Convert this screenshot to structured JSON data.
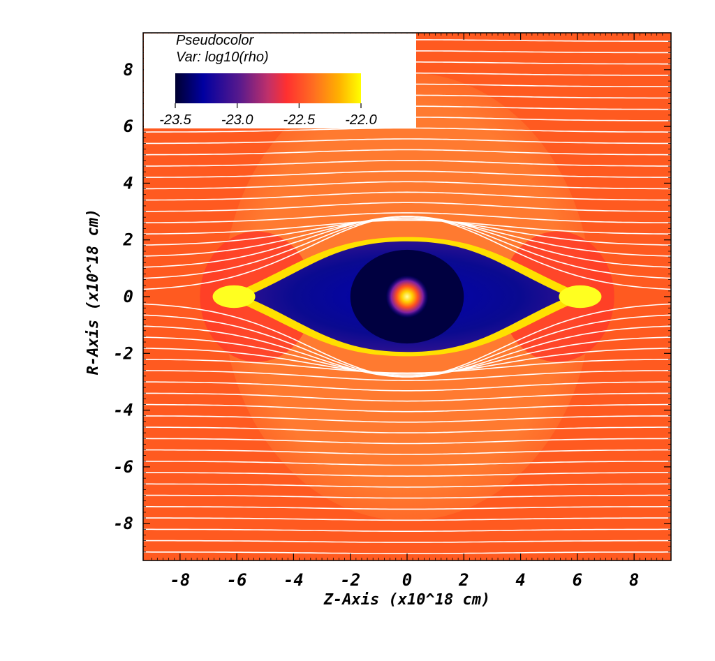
{
  "chart_data": {
    "type": "heatmap",
    "legend": {
      "title": "Pseudocolor",
      "variable": "Var: log10(rho)",
      "ticks": [
        -23.5,
        -23.0,
        -22.5,
        -22.0
      ],
      "tick_labels": [
        "-23.5",
        "-23.0",
        "-22.5",
        "-22.0"
      ],
      "range": [
        -23.5,
        -22.0
      ],
      "placement": "top-left",
      "colormap": [
        "#000030",
        "#0000a0",
        "#5a1a8c",
        "#c0306a",
        "#ff3030",
        "#ff7020",
        "#ffb000",
        "#ffff00"
      ]
    },
    "xlabel": "Z-Axis (x10^18 cm)",
    "ylabel": "R-Axis (x10^18 cm)",
    "xlim": [
      -9.3,
      9.3
    ],
    "ylim": [
      -9.3,
      9.3
    ],
    "x_ticks": [
      -8,
      -6,
      -4,
      -2,
      0,
      2,
      4,
      6,
      8
    ],
    "x_tick_labels": [
      "-8",
      "-6",
      "-4",
      "-2",
      "0",
      "2",
      "4",
      "6",
      "8"
    ],
    "y_ticks": [
      -8,
      -6,
      -4,
      -2,
      0,
      2,
      4,
      6,
      8
    ],
    "y_tick_labels": [
      "-8",
      "-6",
      "-4",
      "-2",
      "0",
      "2",
      "4",
      "6",
      "8"
    ],
    "field_lines_y": [
      -9.0,
      -8.6,
      -8.2,
      -7.8,
      -7.4,
      -7.0,
      -6.6,
      -6.2,
      -5.8,
      -5.4,
      -5.0,
      -4.6,
      -4.2,
      -3.8,
      -3.4,
      -3.0,
      -2.6,
      -2.2,
      -1.8,
      -1.4,
      -1.0,
      -0.6,
      -0.2,
      0.2,
      0.6,
      1.0,
      1.4,
      1.8,
      2.2,
      2.6,
      3.0,
      3.4,
      3.8,
      4.2,
      4.6,
      5.0,
      5.4,
      5.8,
      6.2,
      6.6,
      7.0,
      7.4,
      7.8,
      8.2,
      8.6,
      9.0
    ],
    "background_color": "#ff5a20",
    "field_line_color": "#ffffff"
  }
}
